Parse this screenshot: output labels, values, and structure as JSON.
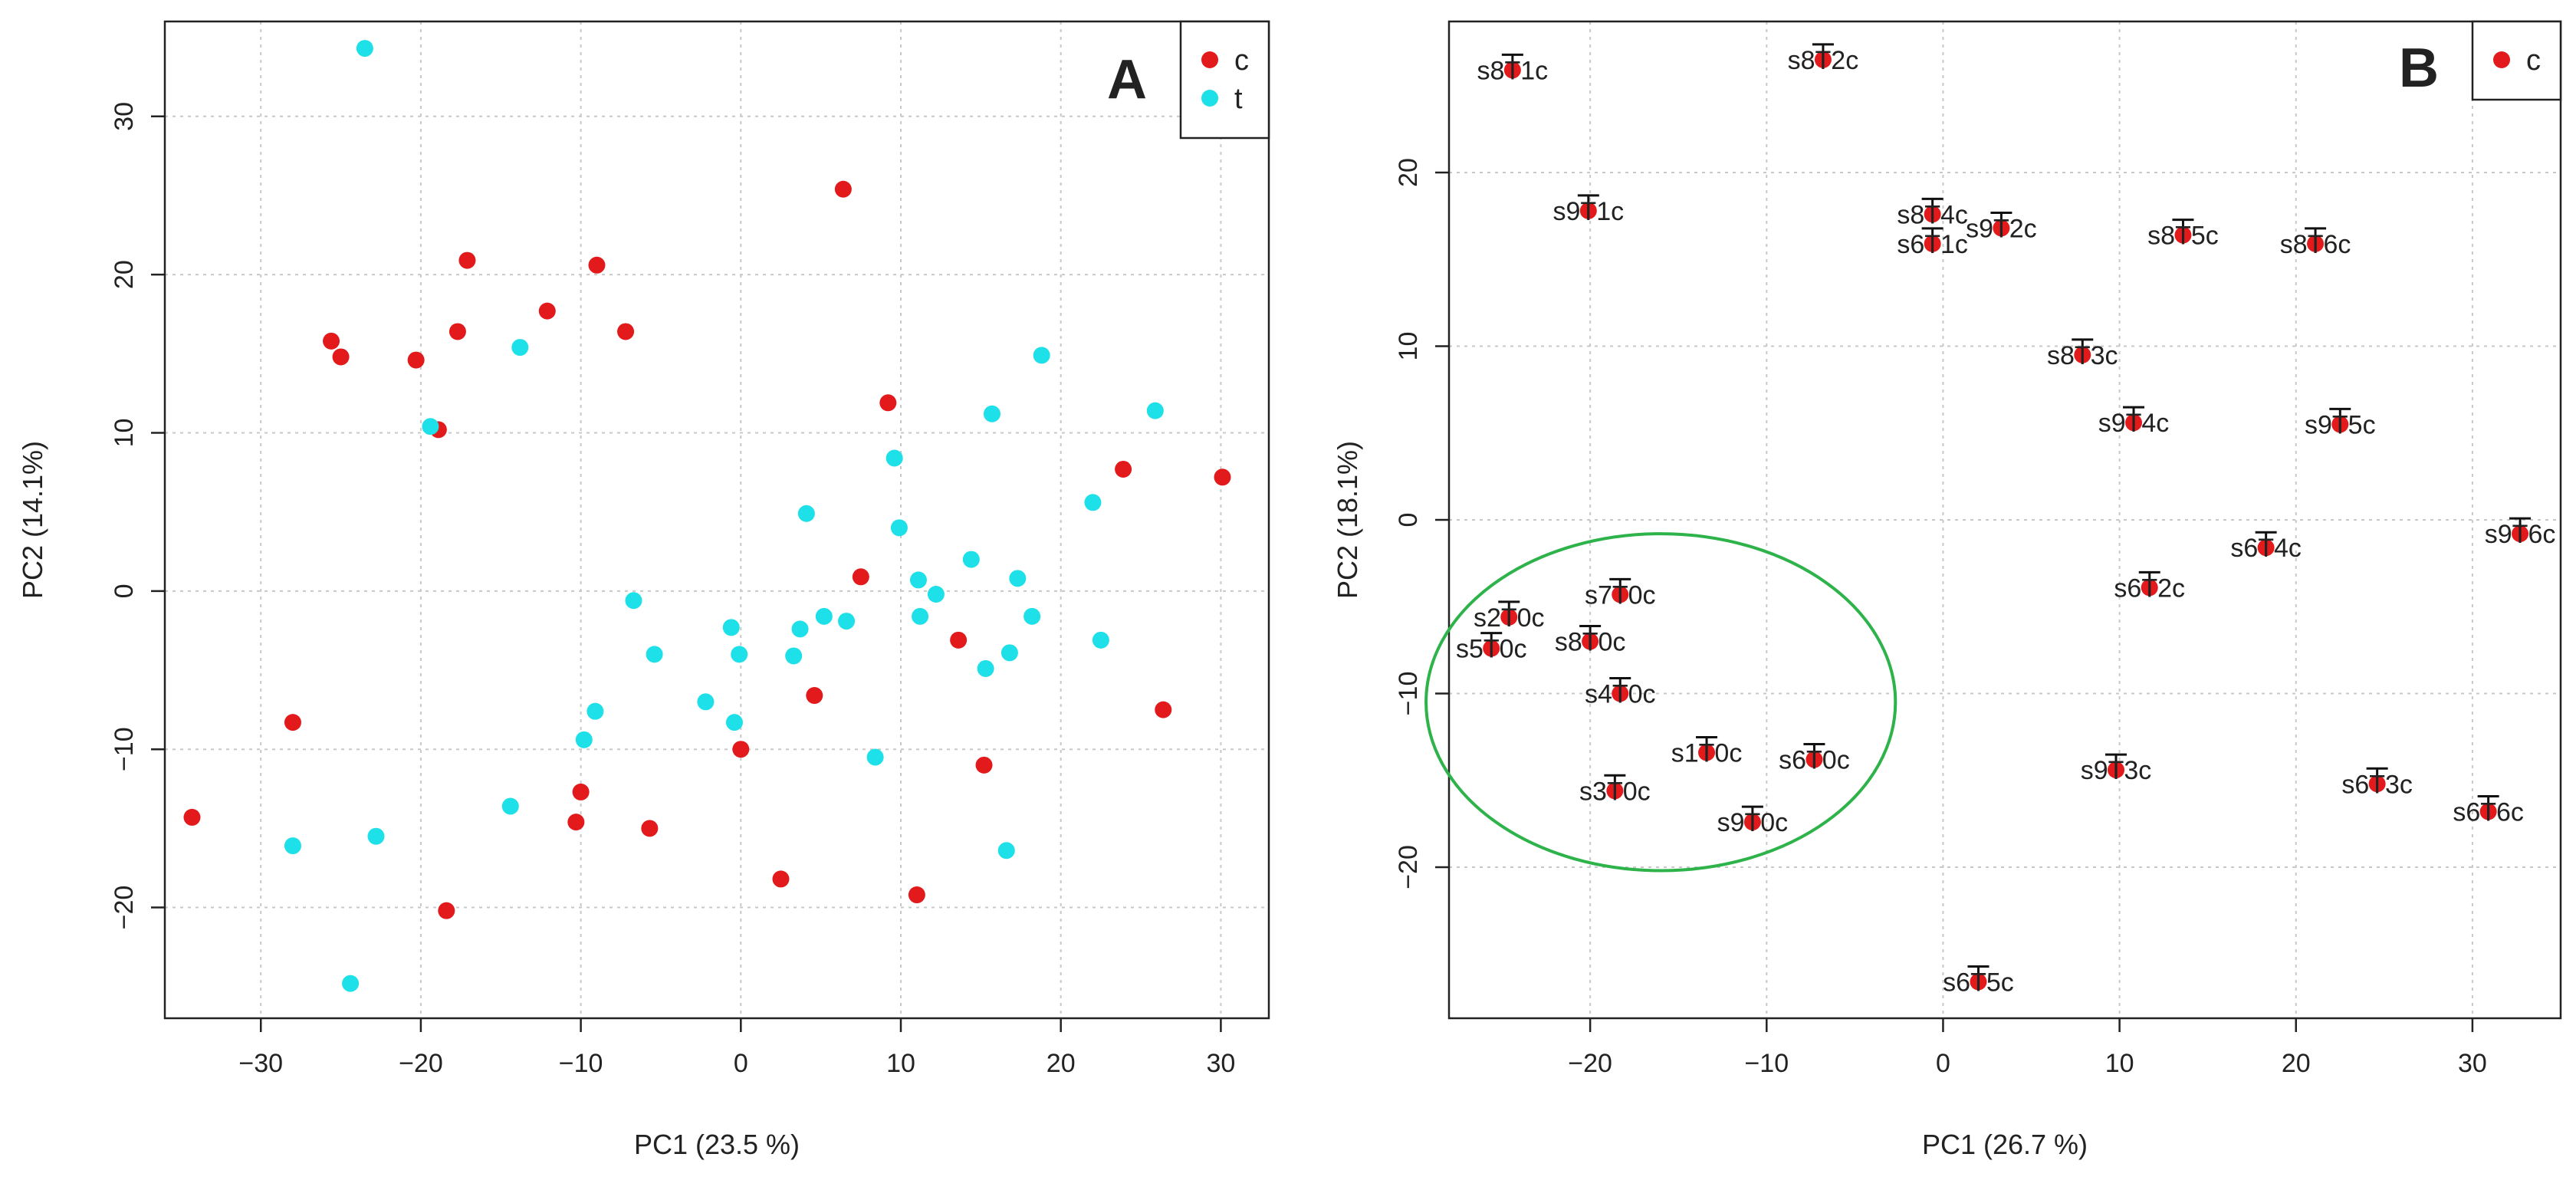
{
  "chart_data": [
    {
      "type": "scatter",
      "panel_label": "A",
      "xlabel": "PC1 (23.5 %)",
      "ylabel": "PC2 (14.1%)",
      "xlim": [
        -36,
        33
      ],
      "ylim": [
        -27,
        36
      ],
      "xticks": [
        -30,
        -20,
        -10,
        0,
        10,
        20,
        30
      ],
      "yticks": [
        -20,
        -10,
        0,
        10,
        20,
        30
      ],
      "grid": true,
      "legend_position": "top-right",
      "series": [
        {
          "name": "c",
          "color": "#e31a1c",
          "points": [
            [
              -34.3,
              -14.3
            ],
            [
              -28.0,
              -8.3
            ],
            [
              -25.6,
              15.8
            ],
            [
              -25.0,
              14.8
            ],
            [
              -20.3,
              14.6
            ],
            [
              -18.9,
              10.2
            ],
            [
              -18.4,
              -20.2
            ],
            [
              -17.7,
              16.4
            ],
            [
              -17.1,
              20.9
            ],
            [
              -12.1,
              17.7
            ],
            [
              -10.0,
              -12.7
            ],
            [
              -10.3,
              -14.6
            ],
            [
              -9.0,
              20.6
            ],
            [
              -7.2,
              16.4
            ],
            [
              -5.7,
              -15.0
            ],
            [
              0.0,
              -10.0
            ],
            [
              2.5,
              -18.2
            ],
            [
              4.6,
              -6.6
            ],
            [
              6.4,
              25.4
            ],
            [
              7.5,
              0.9
            ],
            [
              9.2,
              11.9
            ],
            [
              11.0,
              -19.2
            ],
            [
              13.6,
              -3.1
            ],
            [
              15.2,
              -11.0
            ],
            [
              23.9,
              7.7
            ],
            [
              26.4,
              -7.5
            ],
            [
              30.1,
              7.2
            ]
          ]
        },
        {
          "name": "t",
          "color": "#1de0e8",
          "points": [
            [
              -28.0,
              -16.1
            ],
            [
              -24.4,
              -24.8
            ],
            [
              -23.5,
              34.3
            ],
            [
              -22.8,
              -15.5
            ],
            [
              -19.4,
              10.4
            ],
            [
              -14.4,
              -13.6
            ],
            [
              -13.8,
              15.4
            ],
            [
              -9.8,
              -9.4
            ],
            [
              -9.1,
              -7.6
            ],
            [
              -6.7,
              -0.6
            ],
            [
              -5.4,
              -4.0
            ],
            [
              -2.2,
              -7.0
            ],
            [
              -0.6,
              -2.3
            ],
            [
              -0.4,
              -8.3
            ],
            [
              -0.1,
              -4.0
            ],
            [
              3.3,
              -4.1
            ],
            [
              3.7,
              -2.4
            ],
            [
              4.1,
              4.9
            ],
            [
              5.2,
              -1.6
            ],
            [
              6.6,
              -1.9
            ],
            [
              8.4,
              -10.5
            ],
            [
              9.6,
              8.4
            ],
            [
              9.9,
              4.0
            ],
            [
              11.1,
              0.7
            ],
            [
              11.2,
              -1.6
            ],
            [
              12.2,
              -0.2
            ],
            [
              14.4,
              2.0
            ],
            [
              15.3,
              -4.9
            ],
            [
              15.7,
              11.2
            ],
            [
              16.6,
              -16.4
            ],
            [
              16.8,
              -3.9
            ],
            [
              17.3,
              0.8
            ],
            [
              18.2,
              -1.6
            ],
            [
              18.8,
              14.9
            ],
            [
              22.0,
              5.6
            ],
            [
              22.5,
              -3.1
            ],
            [
              25.9,
              11.4
            ]
          ]
        }
      ]
    },
    {
      "type": "scatter",
      "panel_label": "B",
      "xlabel": "PC1 (26.7 %)",
      "ylabel": "PC2 (18.1%)",
      "xlim": [
        -28,
        35
      ],
      "ylim": [
        -28.7,
        28.7
      ],
      "xticks": [
        -20,
        -10,
        0,
        10,
        20,
        30
      ],
      "yticks": [
        -20,
        -10,
        0,
        10,
        20
      ],
      "grid": true,
      "legend_position": "top-right",
      "annotation_ellipse": {
        "cx": -16.0,
        "cy": -10.5,
        "rx": 13.3,
        "ry": 9.7,
        "color": "#2db34a"
      },
      "series": [
        {
          "name": "c",
          "color": "#e31a1c",
          "points": [
            {
              "x": -24.4,
              "y": 25.9,
              "label": "s8T1c"
            },
            {
              "x": -6.8,
              "y": 26.5,
              "label": "s8T2c"
            },
            {
              "x": -20.1,
              "y": 17.8,
              "label": "s9T1c"
            },
            {
              "x": -0.6,
              "y": 17.6,
              "label": "s8T4c"
            },
            {
              "x": 3.3,
              "y": 16.8,
              "label": "s9T2c"
            },
            {
              "x": -0.6,
              "y": 15.9,
              "label": "s6T1c"
            },
            {
              "x": 13.6,
              "y": 16.4,
              "label": "s8T5c"
            },
            {
              "x": 21.1,
              "y": 15.9,
              "label": "s8T6c"
            },
            {
              "x": 7.9,
              "y": 9.5,
              "label": "s8T3c"
            },
            {
              "x": 10.8,
              "y": 5.6,
              "label": "s9T4c"
            },
            {
              "x": 22.5,
              "y": 5.5,
              "label": "s9T5c"
            },
            {
              "x": 32.7,
              "y": -0.8,
              "label": "s9T6c"
            },
            {
              "x": 18.3,
              "y": -1.6,
              "label": "s6T4c"
            },
            {
              "x": 11.7,
              "y": -3.9,
              "label": "s6T2c"
            },
            {
              "x": -18.3,
              "y": -4.3,
              "label": "s7T0c"
            },
            {
              "x": -24.6,
              "y": -5.6,
              "label": "s2T0c"
            },
            {
              "x": -20.0,
              "y": -7.0,
              "label": "s8T0c"
            },
            {
              "x": -25.6,
              "y": -7.4,
              "label": "s5T0c"
            },
            {
              "x": -18.3,
              "y": -10.0,
              "label": "s4T0c"
            },
            {
              "x": -13.4,
              "y": -13.4,
              "label": "s1T0c"
            },
            {
              "x": -7.3,
              "y": -13.8,
              "label": "s6T0c"
            },
            {
              "x": -18.6,
              "y": -15.6,
              "label": "s3T0c"
            },
            {
              "x": -10.8,
              "y": -17.4,
              "label": "s9T0c"
            },
            {
              "x": 9.8,
              "y": -14.4,
              "label": "s9T3c"
            },
            {
              "x": 24.6,
              "y": -15.2,
              "label": "s6T3c"
            },
            {
              "x": 30.9,
              "y": -16.8,
              "label": "s6T6c"
            },
            {
              "x": 2.0,
              "y": -26.6,
              "label": "s6T5c"
            }
          ]
        }
      ]
    }
  ]
}
